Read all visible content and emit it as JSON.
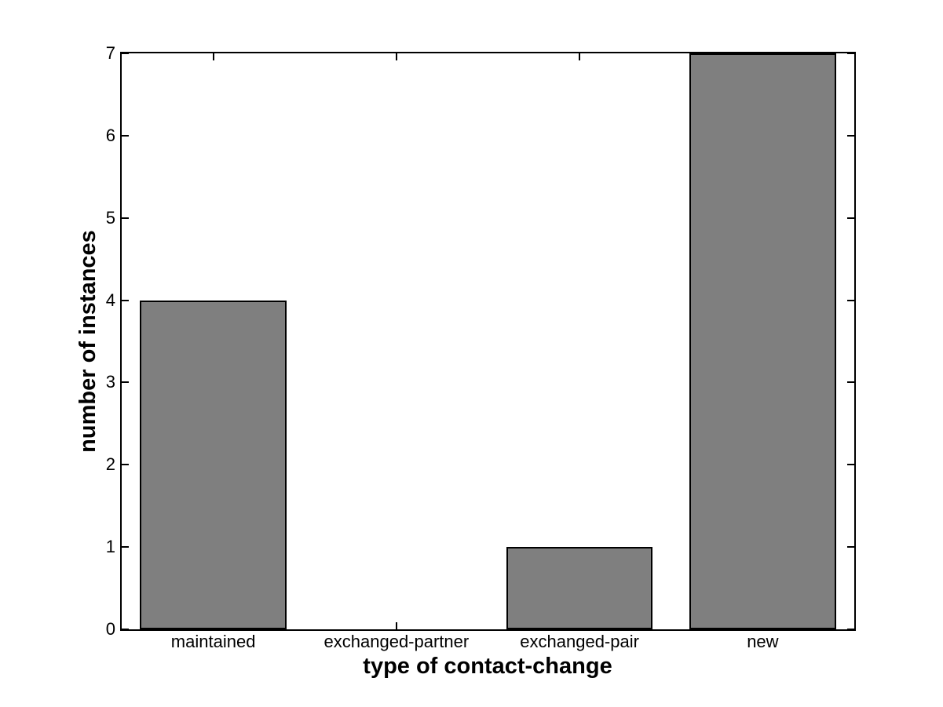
{
  "figure": {
    "background": "#ffffff"
  },
  "chart_data": {
    "type": "bar",
    "title": "",
    "xlabel": "type of contact-change",
    "ylabel": "number of instances",
    "categories": [
      "maintained",
      "exchanged-partner",
      "exchanged-pair",
      "new"
    ],
    "values": [
      4,
      0,
      1,
      7
    ],
    "ylim": [
      0,
      7
    ],
    "ytick_labels": [
      "0",
      "1",
      "2",
      "3",
      "4",
      "5",
      "6",
      "7"
    ],
    "grid": false,
    "legend": null,
    "bar_width_fraction": 0.8,
    "bar_color": "#7F7F7F",
    "bar_edge_color": "#000000",
    "axis_color": "#000000",
    "text_color": "#000000"
  }
}
